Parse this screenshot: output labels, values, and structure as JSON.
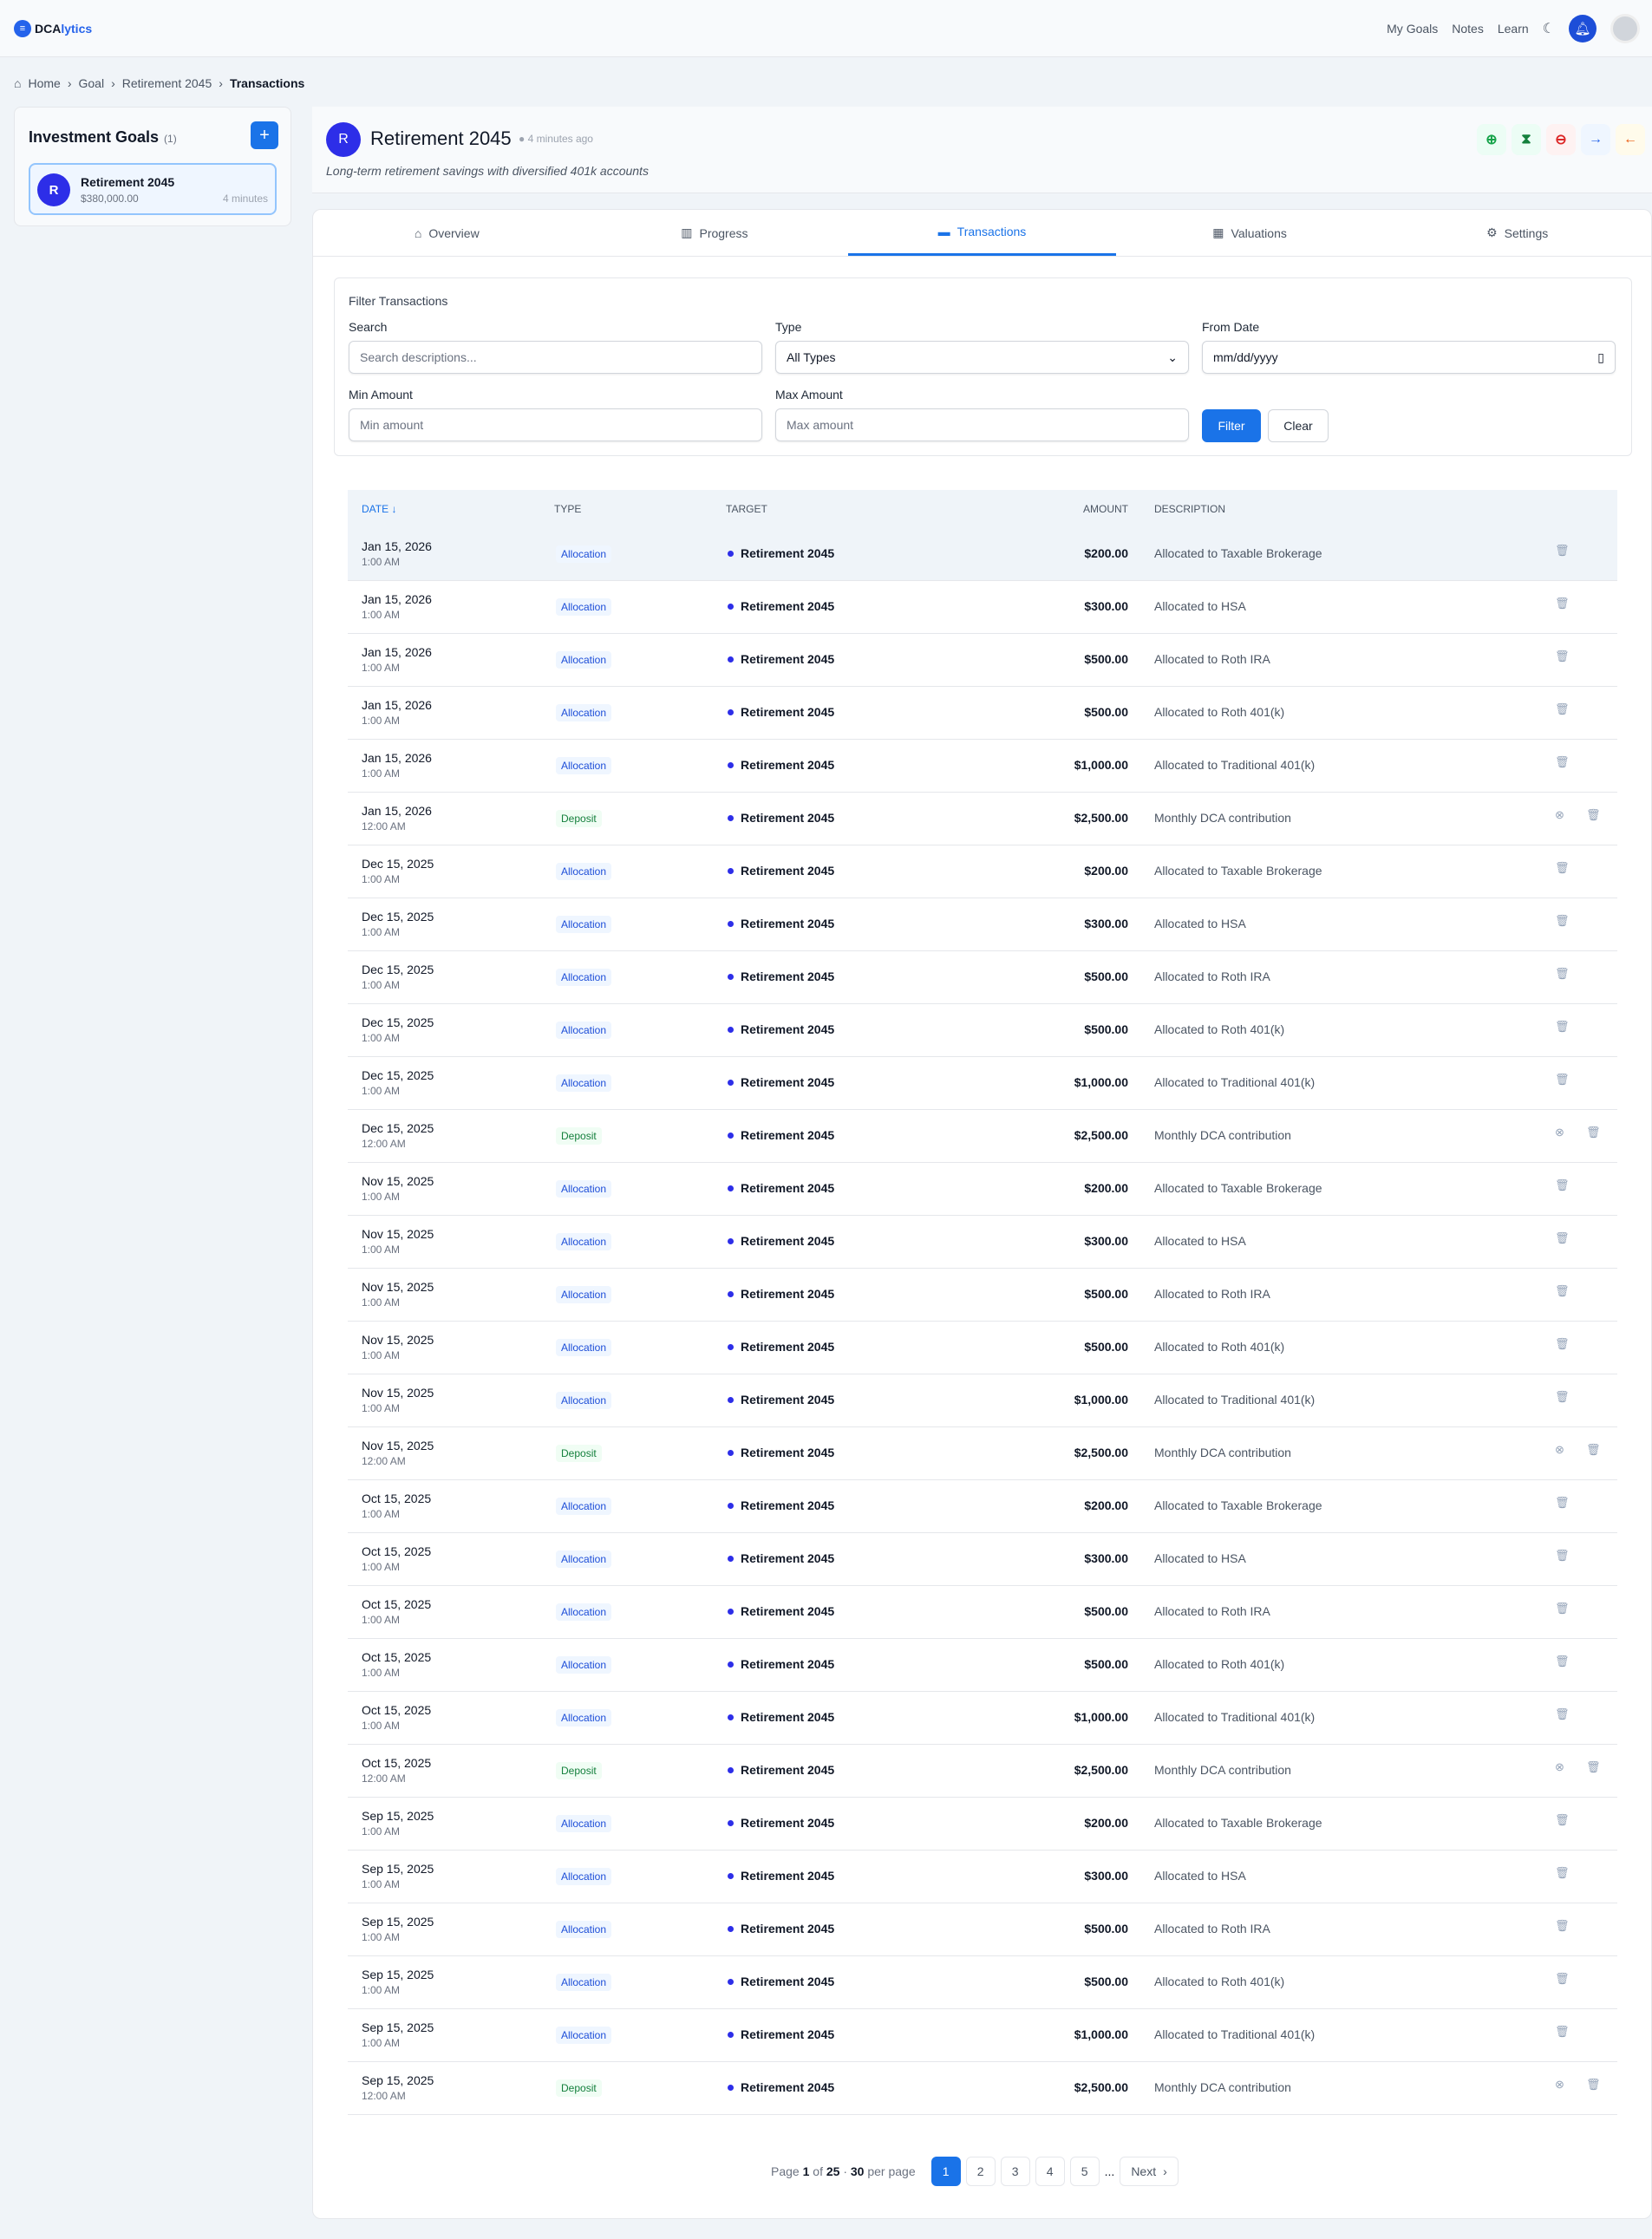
{
  "app": {
    "logo_a": "DCA",
    "logo_b": "lytics"
  },
  "nav": {
    "items": [
      "My Goals",
      "Notes",
      "Learn"
    ]
  },
  "breadcrumb": [
    "Home",
    "Goal",
    "Retirement 2045",
    "Transactions"
  ],
  "sidebar": {
    "title": "Investment Goals",
    "count": "(1)",
    "goal": {
      "initial": "R",
      "name": "Retirement 2045",
      "amount": "$380,000.00",
      "time": "4 minutes"
    }
  },
  "goal": {
    "initial": "R",
    "title": "Retirement 2045",
    "updated": "4 minutes ago",
    "description": "Long-term retirement savings with diversified 401k accounts"
  },
  "tabs": [
    "Overview",
    "Progress",
    "Transactions",
    "Valuations",
    "Settings"
  ],
  "filter": {
    "title": "Filter Transactions",
    "search_label": "Search",
    "search_placeholder": "Search descriptions...",
    "type_label": "Type",
    "type_value": "All Types",
    "from_label": "From Date",
    "from_value": "mm/dd/yyyy",
    "min_label": "Min Amount",
    "min_placeholder": "Min amount",
    "max_label": "Max Amount",
    "max_placeholder": "Max amount",
    "filter_btn": "Filter",
    "clear_btn": "Clear"
  },
  "table": {
    "headers": [
      "Date ↓",
      "Type",
      "Target",
      "Amount",
      "Description"
    ],
    "rows": [
      {
        "date": "Jan 15, 2026",
        "time": "1:00 AM",
        "type": "Allocation",
        "target": "Retirement 2045",
        "amount": "$200.00",
        "desc": "Allocated to Taxable Brokerage"
      },
      {
        "date": "Jan 15, 2026",
        "time": "1:00 AM",
        "type": "Allocation",
        "target": "Retirement 2045",
        "amount": "$300.00",
        "desc": "Allocated to HSA"
      },
      {
        "date": "Jan 15, 2026",
        "time": "1:00 AM",
        "type": "Allocation",
        "target": "Retirement 2045",
        "amount": "$500.00",
        "desc": "Allocated to Roth IRA"
      },
      {
        "date": "Jan 15, 2026",
        "time": "1:00 AM",
        "type": "Allocation",
        "target": "Retirement 2045",
        "amount": "$500.00",
        "desc": "Allocated to Roth 401(k)"
      },
      {
        "date": "Jan 15, 2026",
        "time": "1:00 AM",
        "type": "Allocation",
        "target": "Retirement 2045",
        "amount": "$1,000.00",
        "desc": "Allocated to Traditional 401(k)"
      },
      {
        "date": "Jan 15, 2026",
        "time": "12:00 AM",
        "type": "Deposit",
        "target": "Retirement 2045",
        "amount": "$2,500.00",
        "desc": "Monthly DCA contribution"
      },
      {
        "date": "Dec 15, 2025",
        "time": "1:00 AM",
        "type": "Allocation",
        "target": "Retirement 2045",
        "amount": "$200.00",
        "desc": "Allocated to Taxable Brokerage"
      },
      {
        "date": "Dec 15, 2025",
        "time": "1:00 AM",
        "type": "Allocation",
        "target": "Retirement 2045",
        "amount": "$300.00",
        "desc": "Allocated to HSA"
      },
      {
        "date": "Dec 15, 2025",
        "time": "1:00 AM",
        "type": "Allocation",
        "target": "Retirement 2045",
        "amount": "$500.00",
        "desc": "Allocated to Roth IRA"
      },
      {
        "date": "Dec 15, 2025",
        "time": "1:00 AM",
        "type": "Allocation",
        "target": "Retirement 2045",
        "amount": "$500.00",
        "desc": "Allocated to Roth 401(k)"
      },
      {
        "date": "Dec 15, 2025",
        "time": "1:00 AM",
        "type": "Allocation",
        "target": "Retirement 2045",
        "amount": "$1,000.00",
        "desc": "Allocated to Traditional 401(k)"
      },
      {
        "date": "Dec 15, 2025",
        "time": "12:00 AM",
        "type": "Deposit",
        "target": "Retirement 2045",
        "amount": "$2,500.00",
        "desc": "Monthly DCA contribution"
      },
      {
        "date": "Nov 15, 2025",
        "time": "1:00 AM",
        "type": "Allocation",
        "target": "Retirement 2045",
        "amount": "$200.00",
        "desc": "Allocated to Taxable Brokerage"
      },
      {
        "date": "Nov 15, 2025",
        "time": "1:00 AM",
        "type": "Allocation",
        "target": "Retirement 2045",
        "amount": "$300.00",
        "desc": "Allocated to HSA"
      },
      {
        "date": "Nov 15, 2025",
        "time": "1:00 AM",
        "type": "Allocation",
        "target": "Retirement 2045",
        "amount": "$500.00",
        "desc": "Allocated to Roth IRA"
      },
      {
        "date": "Nov 15, 2025",
        "time": "1:00 AM",
        "type": "Allocation",
        "target": "Retirement 2045",
        "amount": "$500.00",
        "desc": "Allocated to Roth 401(k)"
      },
      {
        "date": "Nov 15, 2025",
        "time": "1:00 AM",
        "type": "Allocation",
        "target": "Retirement 2045",
        "amount": "$1,000.00",
        "desc": "Allocated to Traditional 401(k)"
      },
      {
        "date": "Nov 15, 2025",
        "time": "12:00 AM",
        "type": "Deposit",
        "target": "Retirement 2045",
        "amount": "$2,500.00",
        "desc": "Monthly DCA contribution"
      },
      {
        "date": "Oct 15, 2025",
        "time": "1:00 AM",
        "type": "Allocation",
        "target": "Retirement 2045",
        "amount": "$200.00",
        "desc": "Allocated to Taxable Brokerage"
      },
      {
        "date": "Oct 15, 2025",
        "time": "1:00 AM",
        "type": "Allocation",
        "target": "Retirement 2045",
        "amount": "$300.00",
        "desc": "Allocated to HSA"
      },
      {
        "date": "Oct 15, 2025",
        "time": "1:00 AM",
        "type": "Allocation",
        "target": "Retirement 2045",
        "amount": "$500.00",
        "desc": "Allocated to Roth IRA"
      },
      {
        "date": "Oct 15, 2025",
        "time": "1:00 AM",
        "type": "Allocation",
        "target": "Retirement 2045",
        "amount": "$500.00",
        "desc": "Allocated to Roth 401(k)"
      },
      {
        "date": "Oct 15, 2025",
        "time": "1:00 AM",
        "type": "Allocation",
        "target": "Retirement 2045",
        "amount": "$1,000.00",
        "desc": "Allocated to Traditional 401(k)"
      },
      {
        "date": "Oct 15, 2025",
        "time": "12:00 AM",
        "type": "Deposit",
        "target": "Retirement 2045",
        "amount": "$2,500.00",
        "desc": "Monthly DCA contribution"
      },
      {
        "date": "Sep 15, 2025",
        "time": "1:00 AM",
        "type": "Allocation",
        "target": "Retirement 2045",
        "amount": "$200.00",
        "desc": "Allocated to Taxable Brokerage"
      },
      {
        "date": "Sep 15, 2025",
        "time": "1:00 AM",
        "type": "Allocation",
        "target": "Retirement 2045",
        "amount": "$300.00",
        "desc": "Allocated to HSA"
      },
      {
        "date": "Sep 15, 2025",
        "time": "1:00 AM",
        "type": "Allocation",
        "target": "Retirement 2045",
        "amount": "$500.00",
        "desc": "Allocated to Roth IRA"
      },
      {
        "date": "Sep 15, 2025",
        "time": "1:00 AM",
        "type": "Allocation",
        "target": "Retirement 2045",
        "amount": "$500.00",
        "desc": "Allocated to Roth 401(k)"
      },
      {
        "date": "Sep 15, 2025",
        "time": "1:00 AM",
        "type": "Allocation",
        "target": "Retirement 2045",
        "amount": "$1,000.00",
        "desc": "Allocated to Traditional 401(k)"
      },
      {
        "date": "Sep 15, 2025",
        "time": "12:00 AM",
        "type": "Deposit",
        "target": "Retirement 2045",
        "amount": "$2,500.00",
        "desc": "Monthly DCA contribution"
      }
    ]
  },
  "pagination": {
    "page_word": "Page",
    "current": "1",
    "of_word": "of",
    "total": "25",
    "sep": "·",
    "per_page": "30",
    "per_page_word": "per page",
    "pages": [
      "1",
      "2",
      "3",
      "4",
      "5"
    ],
    "ellipsis": "...",
    "next": "Next"
  },
  "colors": {
    "accent": "#1a73e8",
    "avatar": "#2d2ee8",
    "allocation": "#1d4ed8",
    "deposit": "#15803d"
  }
}
